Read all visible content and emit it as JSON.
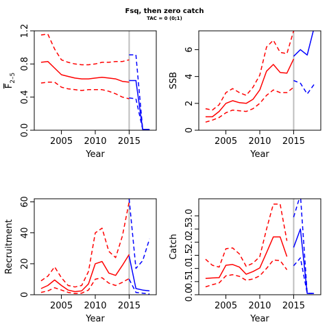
{
  "title": "Fsq, then zero catch",
  "subtitle": "TAC = 0 (0;1)",
  "colors": {
    "historic": "#ff0000",
    "projection": "#0000ff",
    "divider": "#bebebe"
  },
  "chart_data": [
    {
      "type": "line",
      "panel": "top-left",
      "xlabel": "Year",
      "ylabel": "F̅ 2–5",
      "ylabel_main": "F",
      "ylabel_sub": "2–5",
      "xlim": [
        2001,
        2019
      ],
      "ylim": [
        0,
        1.2
      ],
      "xticks": [
        2005,
        2010,
        2015
      ],
      "yticks": [
        0.0,
        0.4,
        0.8,
        1.2
      ],
      "ytick_labels": [
        "0.0",
        "0.4",
        "0.8",
        "1.2"
      ],
      "divider_x": 2015,
      "historic": {
        "x": [
          2002,
          2003,
          2004,
          2005,
          2006,
          2007,
          2008,
          2009,
          2010,
          2011,
          2012,
          2013,
          2014,
          2015
        ],
        "median": [
          0.82,
          0.83,
          0.75,
          0.67,
          0.65,
          0.63,
          0.62,
          0.62,
          0.63,
          0.64,
          0.63,
          0.62,
          0.59,
          0.58
        ],
        "lower": [
          0.57,
          0.58,
          0.58,
          0.52,
          0.5,
          0.49,
          0.48,
          0.49,
          0.49,
          0.49,
          0.47,
          0.44,
          0.4,
          0.38
        ],
        "upper": [
          1.15,
          1.16,
          0.98,
          0.85,
          0.82,
          0.8,
          0.79,
          0.79,
          0.8,
          0.82,
          0.82,
          0.83,
          0.83,
          0.85
        ]
      },
      "projection": {
        "x": [
          2015,
          2016,
          2017,
          2018
        ],
        "median": [
          0.6,
          0.6,
          0.01,
          0.01
        ],
        "lower": [
          0.39,
          0.38,
          0.01,
          0.01
        ],
        "upper": [
          0.91,
          0.91,
          0.01,
          0.01
        ]
      }
    },
    {
      "type": "line",
      "panel": "top-right",
      "xlabel": "Year",
      "ylabel": "SSB",
      "xlim": [
        2001,
        2019
      ],
      "ylim": [
        0,
        7.4
      ],
      "xticks": [
        2005,
        2010,
        2015
      ],
      "yticks": [
        0,
        2,
        4,
        6
      ],
      "ytick_labels": [
        "0",
        "2",
        "4",
        "6"
      ],
      "divider_x": 2015,
      "historic": {
        "x": [
          2002,
          2003,
          2004,
          2005,
          2006,
          2007,
          2008,
          2009,
          2010,
          2011,
          2012,
          2013,
          2014,
          2015
        ],
        "median": [
          1.0,
          1.0,
          1.4,
          2.0,
          2.2,
          2.05,
          2.0,
          2.3,
          3.0,
          4.4,
          4.9,
          4.3,
          4.25,
          5.3
        ],
        "lower": [
          0.6,
          0.75,
          0.95,
          1.3,
          1.5,
          1.45,
          1.4,
          1.6,
          2.0,
          2.6,
          3.0,
          2.8,
          2.8,
          3.2
        ],
        "upper": [
          1.6,
          1.5,
          1.9,
          2.8,
          3.1,
          2.8,
          2.6,
          3.2,
          4.1,
          6.2,
          6.7,
          5.8,
          5.7,
          7.4
        ]
      },
      "projection": {
        "x": [
          2015,
          2016,
          2017,
          2018
        ],
        "median": [
          5.5,
          6.0,
          5.6,
          7.6
        ],
        "lower": [
          3.7,
          3.5,
          2.7,
          3.4
        ],
        "upper": [
          7.6,
          7.6,
          7.6,
          7.6
        ]
      }
    },
    {
      "type": "line",
      "panel": "bottom-left",
      "xlabel": "Year",
      "ylabel": "Recruitment",
      "xlim": [
        2001,
        2019
      ],
      "ylim": [
        0,
        62
      ],
      "xticks": [
        2005,
        2010,
        2015
      ],
      "yticks": [
        0,
        20,
        40,
        60
      ],
      "ytick_labels": [
        "0",
        "20",
        "40",
        "60"
      ],
      "divider_x": 2015,
      "historic": {
        "x": [
          2002,
          2003,
          2004,
          2005,
          2006,
          2007,
          2008,
          2009,
          2010,
          2011,
          2012,
          2013,
          2014,
          2015
        ],
        "median": [
          4,
          6,
          9.5,
          6,
          3,
          2,
          2.5,
          7,
          20,
          21.5,
          14,
          12.5,
          19,
          26
        ],
        "lower": [
          1.5,
          2.5,
          4.5,
          3,
          1.5,
          0.8,
          1,
          3,
          10,
          11,
          7.5,
          6,
          8,
          10.5
        ],
        "upper": [
          9,
          12,
          18,
          11,
          6,
          5,
          6,
          15,
          40,
          43,
          28,
          24,
          38,
          60
        ]
      },
      "projection": {
        "x": [
          2015,
          2016,
          2017,
          2018
        ],
        "median": [
          25,
          4,
          3,
          2.5
        ],
        "lower": [
          10,
          1.5,
          1,
          0.5
        ],
        "upper": [
          62,
          17,
          22,
          36
        ]
      }
    },
    {
      "type": "line",
      "panel": "bottom-right",
      "xlabel": "Year",
      "ylabel": "Catch",
      "xlim": [
        2001,
        2019
      ],
      "ylim": [
        0,
        3.65
      ],
      "xticks": [
        2005,
        2010,
        2015
      ],
      "yticks": [
        0.0,
        0.5,
        1.0,
        1.5,
        2.0,
        2.5,
        3.0
      ],
      "ytick_labels": [
        "0.0",
        "0.5",
        "1.0",
        "1.5",
        "2.0",
        "2.5",
        "3.0"
      ],
      "divider_x": 2015,
      "historic": {
        "x": [
          2002,
          2003,
          2004,
          2005,
          2006,
          2007,
          2008,
          2009,
          2010,
          2011,
          2012,
          2013,
          2014
        ],
        "median": [
          0.62,
          0.64,
          0.65,
          1.12,
          1.15,
          1.05,
          0.78,
          0.88,
          1.02,
          1.6,
          2.2,
          2.2,
          1.45
        ],
        "lower": [
          0.3,
          0.38,
          0.45,
          0.72,
          0.76,
          0.7,
          0.55,
          0.6,
          0.72,
          1.0,
          1.32,
          1.3,
          0.95
        ],
        "upper": [
          1.35,
          1.12,
          1.05,
          1.75,
          1.78,
          1.55,
          1.08,
          1.2,
          1.45,
          2.5,
          3.45,
          3.45,
          2.05
        ]
      },
      "projection": {
        "x": [
          2015,
          2016,
          2017,
          2018
        ],
        "median": [
          1.8,
          2.5,
          0.05,
          0.05
        ],
        "lower": [
          1.1,
          1.4,
          0.05,
          0.05
        ],
        "upper": [
          2.95,
          3.8,
          0.05,
          0.05
        ]
      }
    }
  ]
}
